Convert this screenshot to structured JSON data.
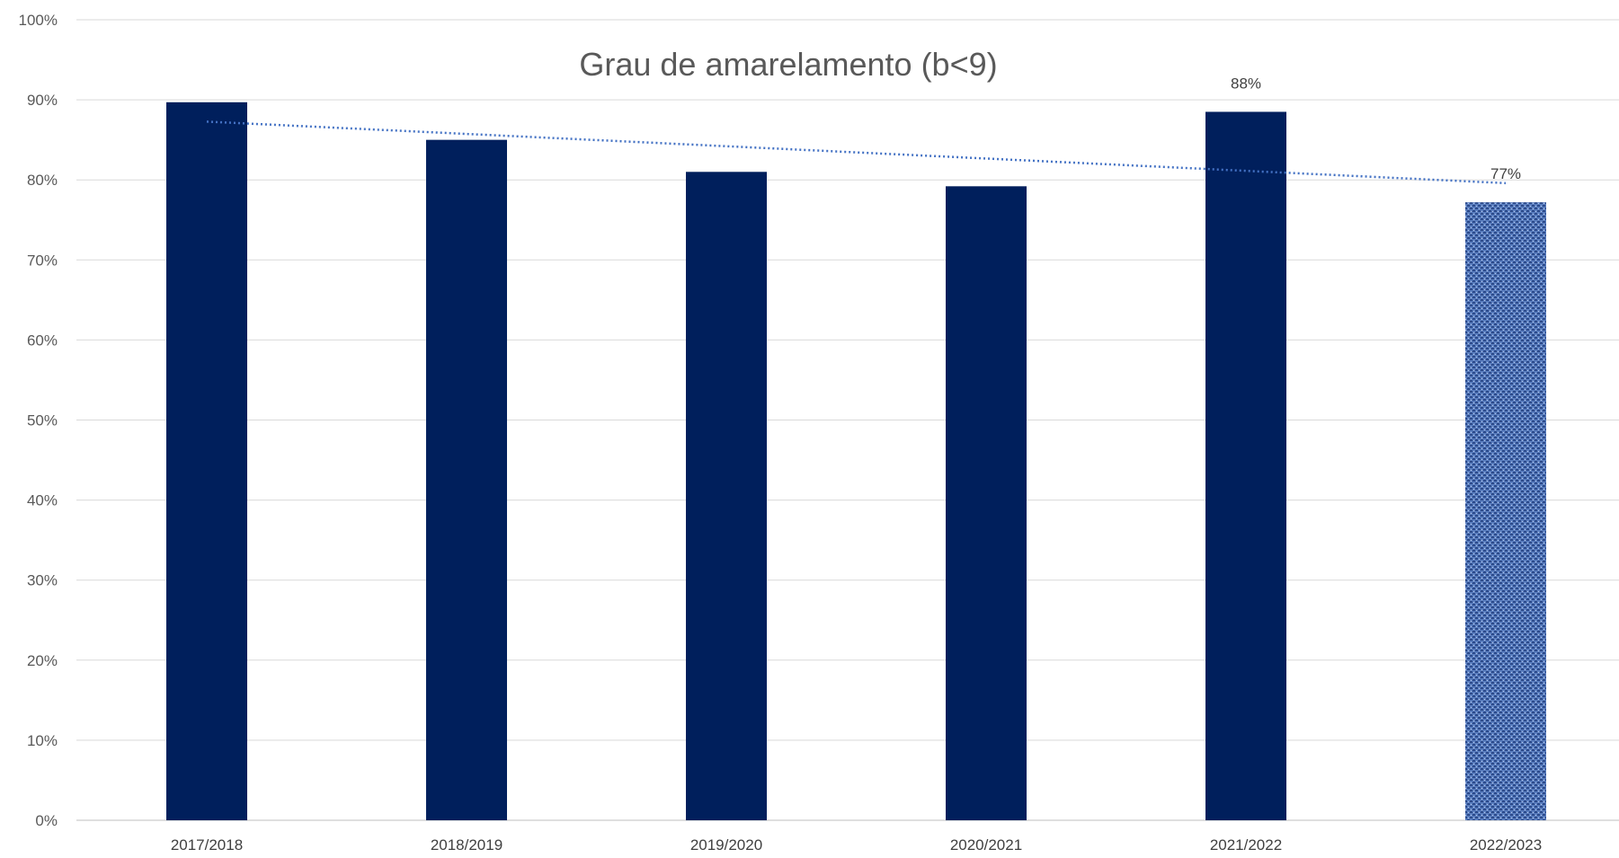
{
  "chart_data": {
    "type": "bar",
    "title": "Grau de amarelamento (b<9)",
    "xlabel": "",
    "ylabel": "",
    "ylim": [
      0,
      1
    ],
    "y_ticks": [
      "0%",
      "10%",
      "20%",
      "30%",
      "40%",
      "50%",
      "60%",
      "70%",
      "80%",
      "90%",
      "100%"
    ],
    "categories": [
      "2017/2018",
      "2018/2019",
      "2019/2020",
      "2020/2021",
      "2021/2022",
      "2022/2023"
    ],
    "values": [
      0.897,
      0.85,
      0.81,
      0.792,
      0.885,
      0.772
    ],
    "data_labels": [
      "",
      "",
      "",
      "",
      "88%",
      "77%"
    ],
    "bar_colors": [
      "#001f5c",
      "#001f5c",
      "#001f5c",
      "#001f5c",
      "#001f5c",
      "#4a6fb5"
    ],
    "last_bar_textured": true,
    "trendline": {
      "type": "linear",
      "style": "dotted",
      "color": "#4472c4"
    },
    "grid": true,
    "legend": "none"
  }
}
